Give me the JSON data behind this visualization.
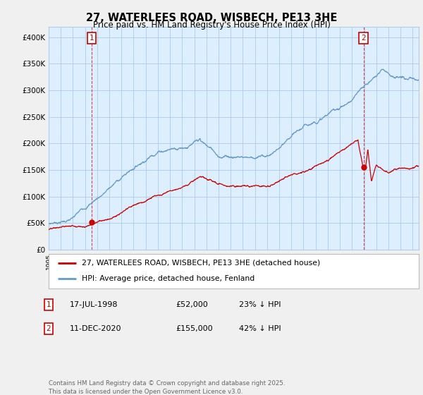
{
  "title": "27, WATERLEES ROAD, WISBECH, PE13 3HE",
  "subtitle": "Price paid vs. HM Land Registry's House Price Index (HPI)",
  "bg_color": "#f0f0f0",
  "plot_bg_color": "#ddeeff",
  "grid_color": "#aaccee",
  "hpi_color": "#6699cc",
  "sale_color": "#cc0000",
  "ylim": [
    0,
    420000
  ],
  "yticks": [
    0,
    50000,
    100000,
    150000,
    200000,
    250000,
    300000,
    350000,
    400000
  ],
  "ytick_labels": [
    "£0",
    "£50K",
    "£100K",
    "£150K",
    "£200K",
    "£250K",
    "£300K",
    "£350K",
    "£400K"
  ],
  "sale1_x": 1998.54,
  "sale1_y": 52000,
  "sale2_x": 2020.94,
  "sale2_y": 155000,
  "legend_sale_label": "27, WATERLEES ROAD, WISBECH, PE13 3HE (detached house)",
  "legend_hpi_label": "HPI: Average price, detached house, Fenland",
  "table_row1": [
    "1",
    "17-JUL-1998",
    "£52,000",
    "23% ↓ HPI"
  ],
  "table_row2": [
    "2",
    "11-DEC-2020",
    "£155,000",
    "42% ↓ HPI"
  ],
  "footer": "Contains HM Land Registry data © Crown copyright and database right 2025.\nThis data is licensed under the Open Government Licence v3.0.",
  "xmin": 1995.0,
  "xmax": 2025.5
}
